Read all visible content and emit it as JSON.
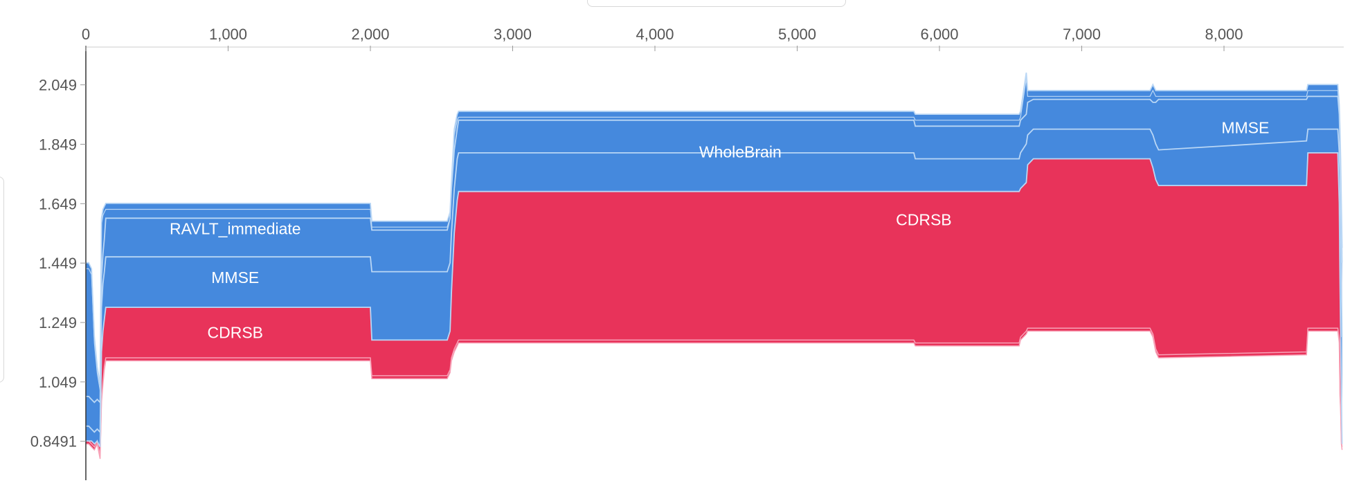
{
  "chart_data": {
    "type": "area",
    "title": "",
    "xlabel": "",
    "ylabel": "",
    "xlim": [
      0,
      8850
    ],
    "ylim": [
      0.76,
      2.2
    ],
    "x_ticks": [
      {
        "v": 0,
        "label": "0"
      },
      {
        "v": 1000,
        "label": "1,000"
      },
      {
        "v": 2000,
        "label": "2,000"
      },
      {
        "v": 3000,
        "label": "3,000"
      },
      {
        "v": 4000,
        "label": "4,000"
      },
      {
        "v": 5000,
        "label": "5,000"
      },
      {
        "v": 6000,
        "label": "6,000"
      },
      {
        "v": 7000,
        "label": "7,000"
      },
      {
        "v": 8000,
        "label": "8,000"
      }
    ],
    "y_ticks": [
      {
        "v": 2.049,
        "label": "2.049"
      },
      {
        "v": 1.849,
        "label": "1.849"
      },
      {
        "v": 1.649,
        "label": "1.649"
      },
      {
        "v": 1.449,
        "label": "1.449"
      },
      {
        "v": 1.249,
        "label": "1.249"
      },
      {
        "v": 1.049,
        "label": "1.049"
      },
      {
        "v": 0.8491,
        "label": "0.8491"
      }
    ],
    "grid": false,
    "legend": "none",
    "colors": {
      "positive": "#e8335a",
      "negative": "#4589dd",
      "border_pos": "#f7a3b8",
      "border_neg": "#bad7f5"
    },
    "x": [
      0,
      20,
      40,
      60,
      80,
      100,
      110,
      120,
      130,
      140,
      2000,
      2010,
      2540,
      2560,
      2570,
      2590,
      2610,
      2620,
      5820,
      5830,
      6560,
      6570,
      6610,
      6620,
      6660,
      7480,
      7500,
      7520,
      7540,
      8580,
      8590,
      8800,
      8810,
      8815,
      8820,
      8825,
      8830
    ],
    "base": [
      0.84,
      0.84,
      0.83,
      0.82,
      0.84,
      0.79,
      0.98,
      1.04,
      1.09,
      1.12,
      1.12,
      1.06,
      1.06,
      1.08,
      1.12,
      1.15,
      1.17,
      1.18,
      1.18,
      1.17,
      1.17,
      1.19,
      1.21,
      1.22,
      1.22,
      1.22,
      1.2,
      1.15,
      1.13,
      1.14,
      1.22,
      1.22,
      1.18,
      1.0,
      0.95,
      0.84,
      0.82
    ],
    "cdrsb_top": [
      0.85,
      0.85,
      0.85,
      0.84,
      0.85,
      0.83,
      1.15,
      1.22,
      1.26,
      1.3,
      1.3,
      1.19,
      1.19,
      1.22,
      1.35,
      1.55,
      1.66,
      1.69,
      1.69,
      1.69,
      1.69,
      1.7,
      1.72,
      1.78,
      1.8,
      1.8,
      1.77,
      1.73,
      1.71,
      1.71,
      1.82,
      1.82,
      1.65,
      1.4,
      1.2,
      1.0,
      0.84
    ],
    "mmse_top": [
      0.9,
      0.9,
      0.89,
      0.88,
      0.89,
      0.88,
      1.3,
      1.38,
      1.42,
      1.47,
      1.47,
      1.42,
      1.42,
      1.45,
      1.55,
      1.7,
      1.8,
      1.82,
      1.82,
      1.8,
      1.8,
      1.82,
      1.85,
      1.88,
      1.9,
      1.9,
      1.88,
      1.85,
      1.83,
      1.86,
      1.9,
      1.9,
      1.82,
      1.75,
      1.6,
      1.4,
      1.2
    ],
    "ravlt_top": [
      1.0,
      1.0,
      0.99,
      0.98,
      0.99,
      0.98,
      1.4,
      1.48,
      1.53,
      1.6,
      1.6,
      1.56,
      1.56,
      1.6,
      1.7,
      1.83,
      1.9,
      1.93,
      1.93,
      1.91,
      1.91,
      1.93,
      1.95,
      1.99,
      2.0,
      2.0,
      1.99,
      1.99,
      2.0,
      2.0,
      2.01,
      2.01,
      1.95,
      1.85,
      1.75,
      1.6,
      1.45
    ],
    "total_top": [
      1.45,
      1.45,
      1.43,
      1.2,
      1.1,
      1.04,
      1.6,
      1.63,
      1.64,
      1.65,
      1.65,
      1.59,
      1.59,
      1.62,
      1.72,
      1.9,
      1.95,
      1.96,
      1.96,
      1.95,
      1.95,
      1.96,
      2.09,
      2.03,
      2.03,
      2.03,
      2.05,
      2.03,
      2.03,
      2.03,
      2.05,
      2.05,
      1.98,
      1.9,
      1.8,
      1.65,
      1.5
    ],
    "labels": [
      {
        "text": "RAVLT_immediate",
        "x": 1050,
        "y": 1.565,
        "series": "negative"
      },
      {
        "text": "MMSE",
        "x": 1050,
        "y": 1.4,
        "series": "negative"
      },
      {
        "text": "CDRSB",
        "x": 1050,
        "y": 1.215,
        "series": "positive"
      },
      {
        "text": "WholeBrain",
        "x": 4600,
        "y": 1.823,
        "series": "negative"
      },
      {
        "text": "CDRSB",
        "x": 5890,
        "y": 1.595,
        "series": "positive"
      },
      {
        "text": "MMSE",
        "x": 8150,
        "y": 1.905,
        "series": "negative"
      }
    ]
  }
}
